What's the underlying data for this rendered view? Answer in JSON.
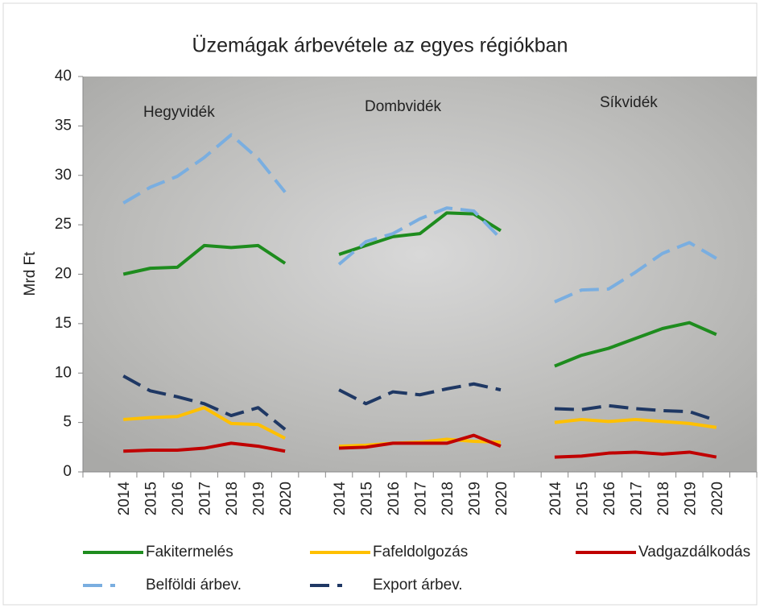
{
  "chart_data": {
    "type": "line",
    "title": "Üzemágak árbevétele az egyes régiókban",
    "y_label": "Mrd Ft",
    "annotations": [
      "Hegyvidék",
      "Dombvidék",
      "Síkvidék"
    ],
    "categories": [
      null,
      "2014",
      "2015",
      "2016",
      "2017",
      "2018",
      "2019",
      "2020",
      null,
      "2014",
      "2015",
      "2016",
      "2017",
      "2018",
      "2019",
      "2020",
      null,
      "2014",
      "2015",
      "2016",
      "2017",
      "2018",
      "2019",
      "2020",
      null
    ],
    "series": [
      {
        "name": "Fakitermelés",
        "color": "#1e8c1e",
        "style": "solid",
        "values": [
          null,
          20,
          20.6,
          20.7,
          22.9,
          22.7,
          22.9,
          21.1,
          null,
          22,
          22.9,
          23.8,
          24.1,
          26.2,
          26.1,
          24.4,
          null,
          10.7,
          11.8,
          12.5,
          13.5,
          14.5,
          15.1,
          13.9,
          null
        ]
      },
      {
        "name": "Fafeldolgozás",
        "color": "#ffc000",
        "style": "solid",
        "values": [
          null,
          5.3,
          5.5,
          5.6,
          6.5,
          4.9,
          4.8,
          3.4,
          null,
          2.6,
          2.7,
          2.9,
          3.0,
          3.3,
          3.1,
          3.0,
          null,
          5.0,
          5.3,
          5.1,
          5.3,
          5.1,
          4.9,
          4.5,
          null
        ]
      },
      {
        "name": "Vadgazdálkodás",
        "color": "#c00000",
        "style": "solid",
        "values": [
          null,
          2.1,
          2.2,
          2.2,
          2.4,
          2.9,
          2.6,
          2.1,
          null,
          2.4,
          2.5,
          2.9,
          2.9,
          2.9,
          3.7,
          2.6,
          null,
          1.5,
          1.6,
          1.9,
          2.0,
          1.8,
          2.0,
          1.5,
          null
        ]
      },
      {
        "name": "Belföldi árbev.",
        "color": "#7aaee0",
        "style": "dashed",
        "values": [
          null,
          27.2,
          28.8,
          29.9,
          31.8,
          34.1,
          31.7,
          28.3,
          null,
          21.0,
          23.3,
          24.1,
          25.6,
          26.7,
          26.4,
          23.6,
          null,
          17.2,
          18.4,
          18.5,
          20.2,
          22.1,
          23.2,
          21.6,
          null
        ]
      },
      {
        "name": "Export árbev.",
        "color": "#1f3864",
        "style": "dashed",
        "values": [
          null,
          9.7,
          8.2,
          7.6,
          6.9,
          5.7,
          6.5,
          4.3,
          null,
          8.3,
          6.9,
          8.1,
          7.8,
          8.4,
          8.9,
          8.3,
          null,
          6.4,
          6.3,
          6.7,
          6.4,
          6.2,
          6.1,
          5.2,
          null
        ]
      }
    ],
    "ylim": [
      0,
      40
    ],
    "yticks": [
      0,
      5,
      10,
      15,
      20,
      25,
      30,
      35,
      40
    ],
    "grid": false
  }
}
